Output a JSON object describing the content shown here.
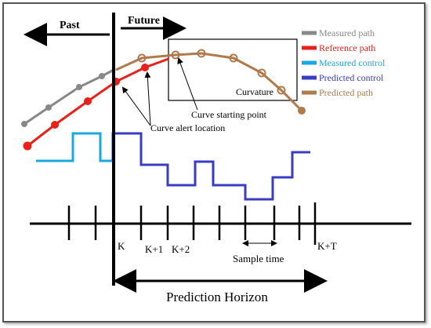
{
  "labels": {
    "past": "Past",
    "future": "Future",
    "curvature": "Curvature",
    "curve_start": "Curve starting point",
    "curve_alert": "Curve alert location",
    "k": "K",
    "k1": "K+1",
    "k2": "K+2",
    "kt": "K+T",
    "sample_time": "Sample time",
    "prediction_horizon": "Prediction Horizon"
  },
  "legend": [
    {
      "label": "Measured path",
      "color": "#888888",
      "text_color": "#888888"
    },
    {
      "label": "Reference path",
      "color": "#e8211b",
      "text_color": "#e8211b"
    },
    {
      "label": "Measured control",
      "color": "#19a9e0",
      "text_color": "#19a9e0"
    },
    {
      "label": "Predicted control",
      "color": "#3a3dc4",
      "text_color": "#3a3dc4"
    },
    {
      "label": "Predicted path",
      "color": "#b07a4c",
      "text_color": "#b07a4c"
    }
  ],
  "colors": {
    "measured_path": "#888888",
    "reference_path": "#e8211b",
    "measured_control": "#19a9e0",
    "predicted_control": "#3a3dc4",
    "predicted_path": "#b07a4c",
    "axis": "#000000"
  }
}
